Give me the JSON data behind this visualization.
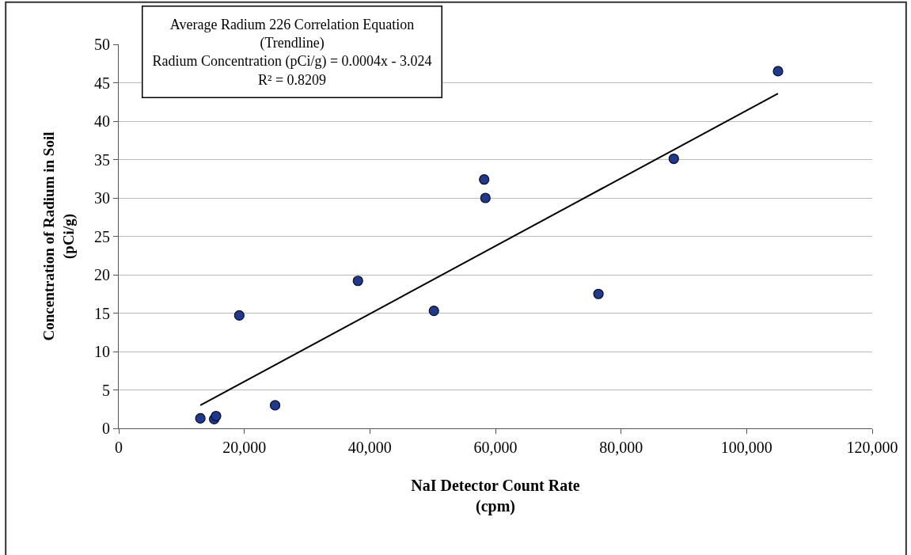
{
  "chart_data": {
    "type": "scatter",
    "xlabel": "NaI Detector Count Rate\n(cpm)",
    "ylabel": "Concentration of Radium in Soil\n(pCi/g)",
    "annotations": [
      "Average Radium 226 Correlation Equation\n(Trendline)\nRadium Concentration (pCi/g) = 0.0004x - 3.024\nR² = 0.8209"
    ],
    "series": [
      {
        "color": "#1f3a8c",
        "marker": "circle",
        "x": [
          13000,
          15200,
          15500,
          19200,
          24900,
          38100,
          50200,
          58200,
          58400,
          76400,
          88400,
          105000
        ],
        "values": [
          1.3,
          1.2,
          1.6,
          14.7,
          3.0,
          19.2,
          15.3,
          32.4,
          30.0,
          17.5,
          35.1,
          46.5
        ]
      },
      {
        "type": "line",
        "color": "#000000",
        "marker": "none",
        "line_style": "solid",
        "x": [
          13000,
          105000
        ],
        "values": [
          3.0,
          43.6
        ]
      }
    ],
    "xlim": [
      0,
      120000
    ],
    "xticks": [
      0,
      {
        "value": 20000,
        "label": "20,000"
      },
      {
        "value": 40000,
        "label": "40,000"
      },
      {
        "value": 60000,
        "label": "60,000"
      },
      {
        "value": 80000,
        "label": "80,000"
      },
      {
        "value": 100000,
        "label": "100,000"
      },
      {
        "value": 120000,
        "label": "120,000"
      }
    ],
    "ylim": [
      0,
      50
    ],
    "yticks": [
      0,
      5,
      10,
      15,
      20,
      25,
      30,
      35,
      40,
      45,
      50
    ],
    "grid": "y"
  }
}
